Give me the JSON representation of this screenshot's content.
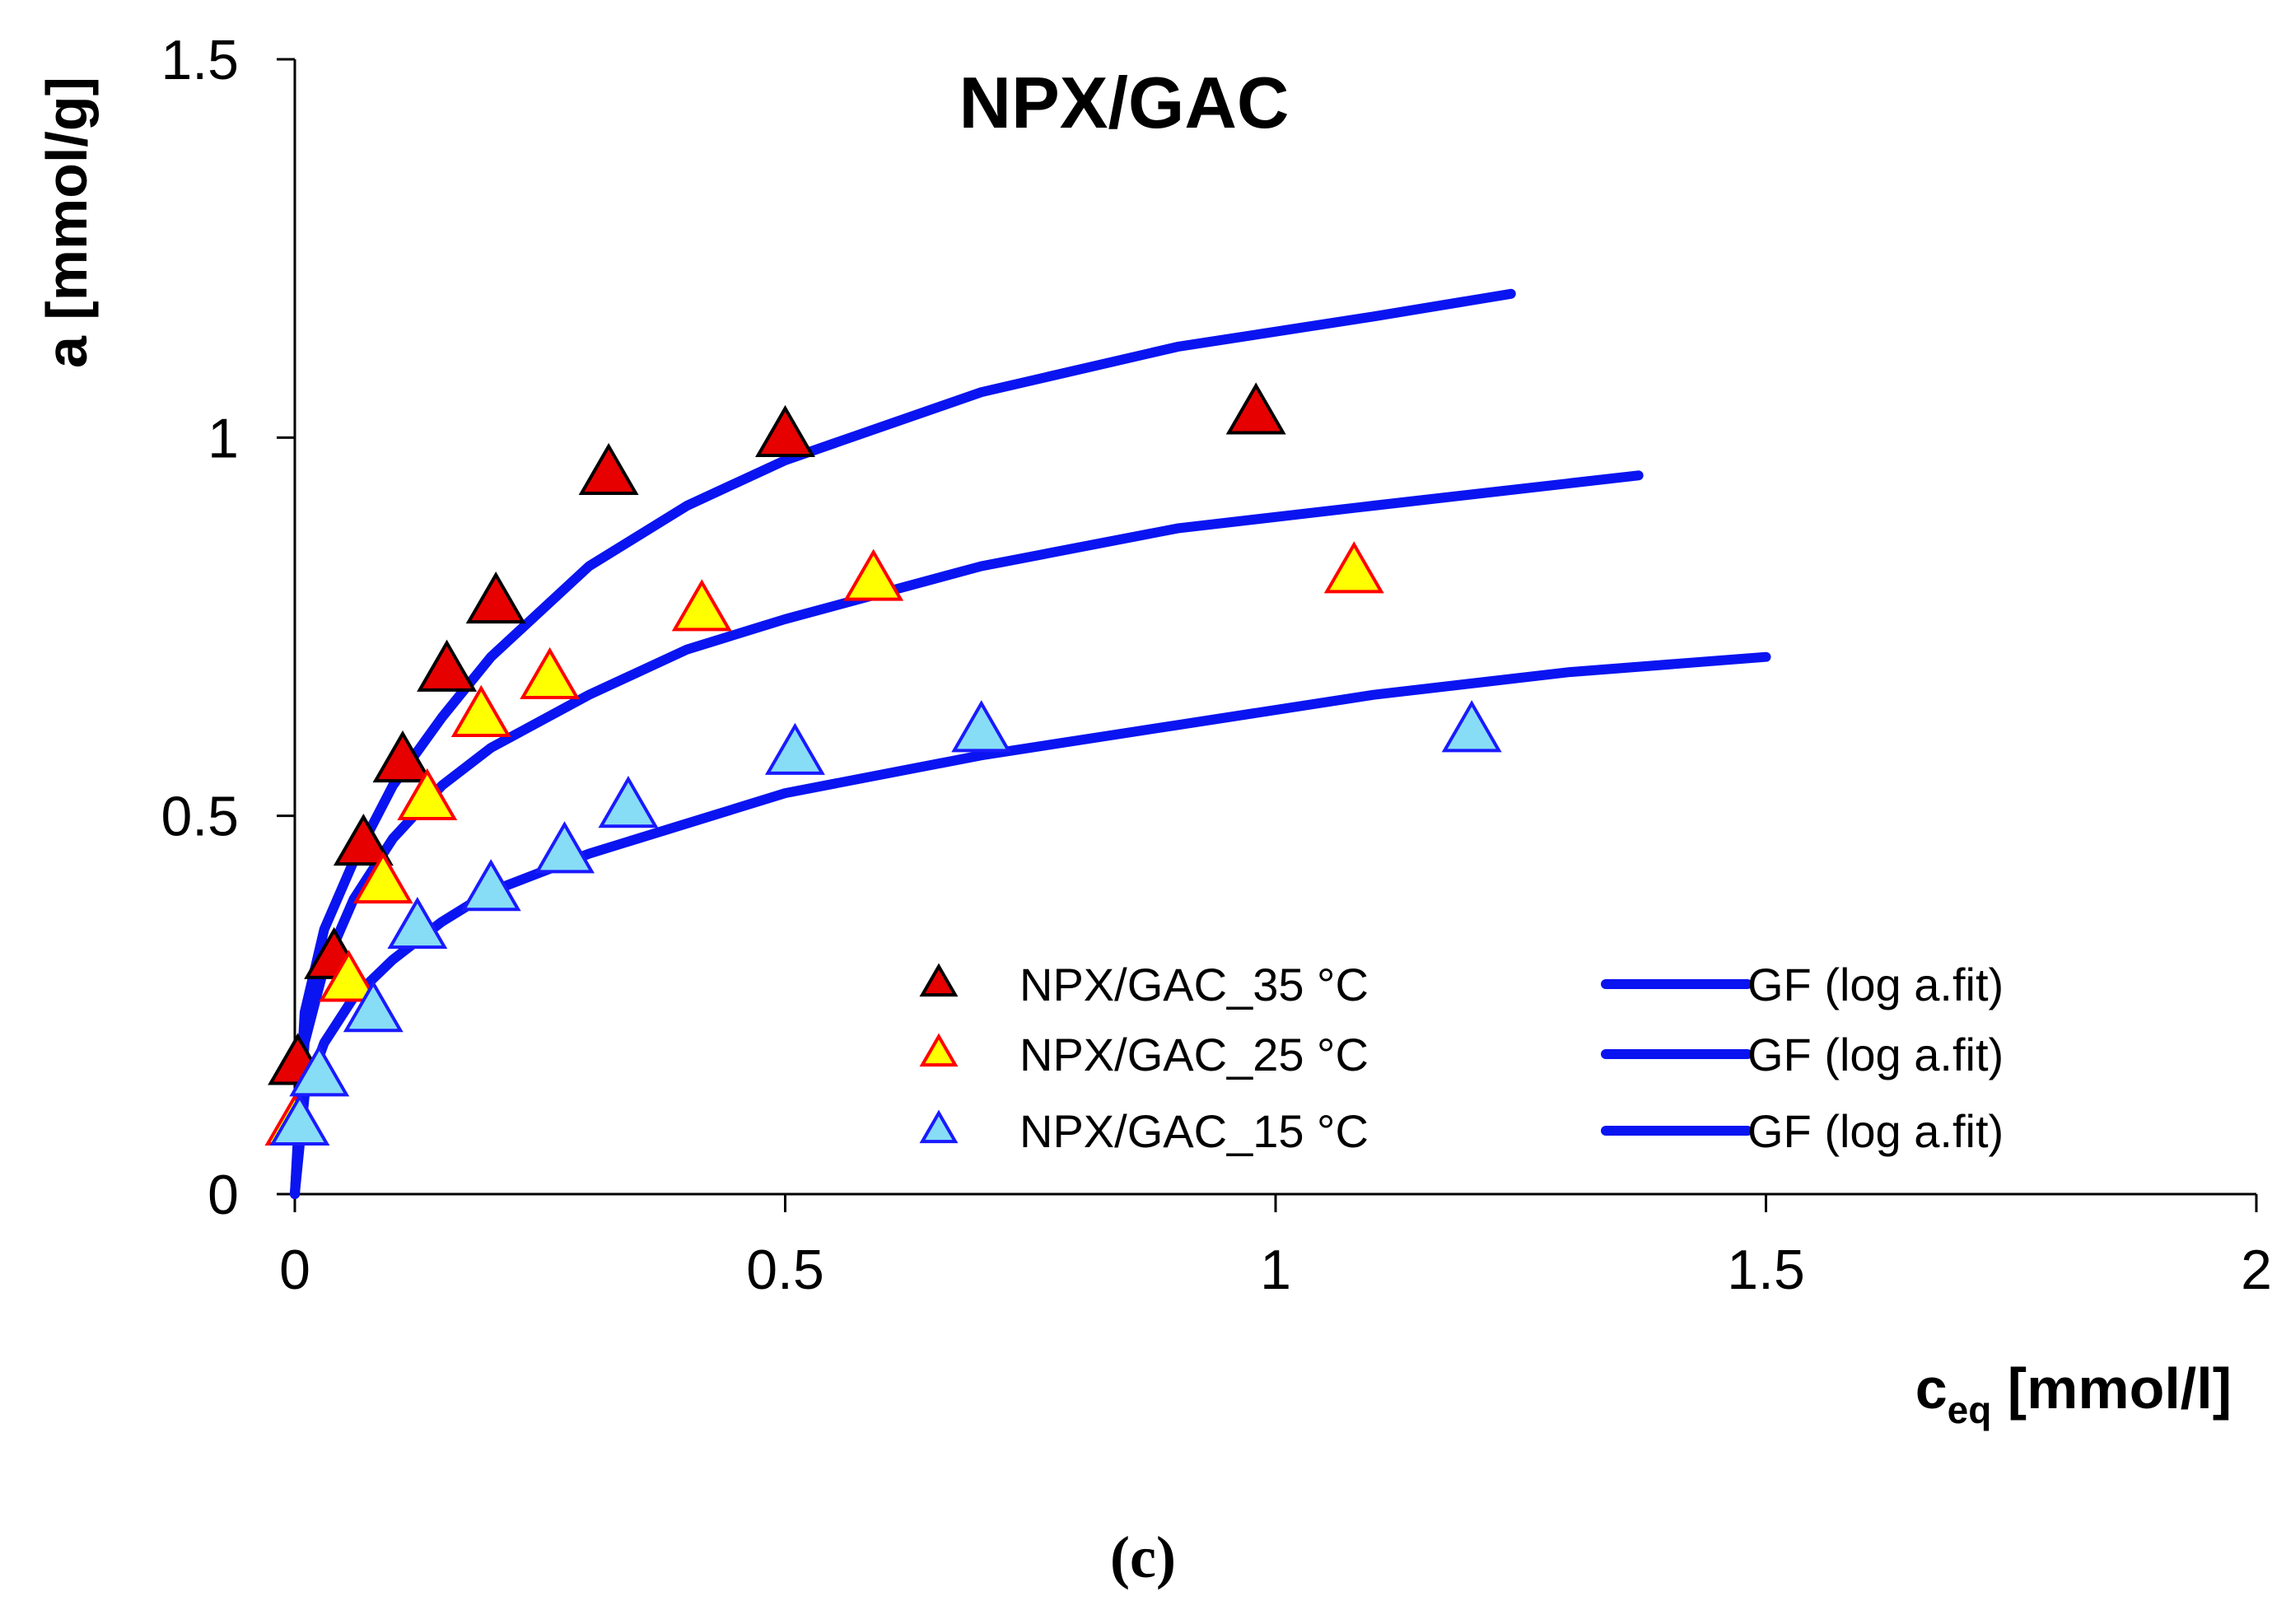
{
  "chart_data": {
    "type": "scatter",
    "title": "NPX/GAC",
    "ylabel": "a [mmol/g]",
    "xlabel": {
      "main": "c",
      "sub": "eq",
      "unit": " [mmol/l]"
    },
    "panel_label": "(c)",
    "xlim": [
      0,
      2
    ],
    "ylim": [
      0,
      1.5
    ],
    "xticks": [
      0,
      0.5,
      1,
      1.5,
      2
    ],
    "yticks": [
      0,
      0.5,
      1,
      1.5
    ],
    "xtick_labels": [
      "0",
      "0.5",
      "1",
      "1.5",
      "2"
    ],
    "ytick_labels": [
      "0",
      "0.5",
      "1",
      "1.5"
    ],
    "colors": {
      "fit_line": "#0a14f0",
      "t35_fill": "#e60000",
      "t35_edge": "#000000",
      "t25_fill": "#ffff00",
      "t25_edge": "#ff0000",
      "t15_fill": "#87ddf5",
      "t15_edge": "#1a1aff"
    },
    "series": [
      {
        "name": "NPX/GAC_35 °C",
        "kind": "points",
        "fill": "#e60000",
        "edge": "#000000",
        "x": [
          0.003,
          0.04,
          0.07,
          0.11,
          0.155,
          0.205,
          0.32,
          0.5,
          0.98
        ],
        "y": [
          0.17,
          0.31,
          0.46,
          0.57,
          0.69,
          0.78,
          0.95,
          1.0,
          1.03
        ]
      },
      {
        "name": "NPX/GAC_25 °C",
        "kind": "points",
        "fill": "#ffff00",
        "edge": "#ff0000",
        "x": [
          0.0,
          0.055,
          0.09,
          0.135,
          0.19,
          0.26,
          0.415,
          0.59,
          1.08
        ],
        "y": [
          0.09,
          0.28,
          0.41,
          0.52,
          0.63,
          0.68,
          0.77,
          0.81,
          0.82
        ]
      },
      {
        "name": "NPX/GAC_15 °C",
        "kind": "points",
        "fill": "#87ddf5",
        "edge": "#1a1aff",
        "x": [
          0.005,
          0.025,
          0.08,
          0.125,
          0.2,
          0.275,
          0.34,
          0.51,
          0.7,
          1.2
        ],
        "y": [
          0.09,
          0.155,
          0.24,
          0.35,
          0.4,
          0.45,
          0.51,
          0.58,
          0.61,
          0.61
        ]
      },
      {
        "name": "GF (log a.fit)",
        "kind": "line",
        "color": "#0a14f0",
        "x": [
          0.0,
          0.01,
          0.03,
          0.06,
          0.1,
          0.15,
          0.2,
          0.3,
          0.4,
          0.5,
          0.7,
          0.9,
          1.1,
          1.24
        ],
        "y": [
          0.0,
          0.24,
          0.35,
          0.44,
          0.54,
          0.63,
          0.71,
          0.83,
          0.91,
          0.97,
          1.06,
          1.12,
          1.16,
          1.19
        ]
      },
      {
        "name": "GF (log a.fit)",
        "kind": "line",
        "color": "#0a14f0",
        "x": [
          0.0,
          0.01,
          0.03,
          0.06,
          0.1,
          0.15,
          0.2,
          0.3,
          0.4,
          0.5,
          0.7,
          0.9,
          1.1,
          1.37
        ],
        "y": [
          0.0,
          0.2,
          0.3,
          0.39,
          0.47,
          0.54,
          0.59,
          0.66,
          0.72,
          0.76,
          0.83,
          0.88,
          0.91,
          0.95
        ]
      },
      {
        "name": "GF (log a.fit)",
        "kind": "line",
        "color": "#0a14f0",
        "x": [
          0.0,
          0.01,
          0.03,
          0.06,
          0.1,
          0.15,
          0.2,
          0.3,
          0.4,
          0.5,
          0.7,
          0.9,
          1.1,
          1.3,
          1.5
        ],
        "y": [
          0.0,
          0.13,
          0.2,
          0.26,
          0.31,
          0.36,
          0.4,
          0.45,
          0.49,
          0.53,
          0.58,
          0.62,
          0.66,
          0.69,
          0.71
        ]
      }
    ],
    "legend": {
      "placement": "lower-right",
      "left": [
        "NPX/GAC_35 °C",
        "NPX/GAC_25 °C",
        "NPX/GAC_15 °C"
      ],
      "right": [
        "GF (log a.fit)",
        "GF (log a.fit)",
        "GF (log a.fit)"
      ]
    }
  }
}
